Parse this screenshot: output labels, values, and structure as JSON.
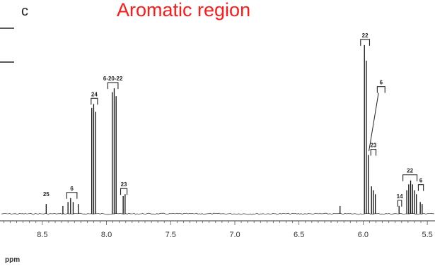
{
  "panel_letter": "c",
  "title": "Aromatic region",
  "chart_data": {
    "type": "line",
    "title": "Aromatic region",
    "xlabel": "ppm",
    "ylabel": "",
    "xlim": [
      8.83,
      5.44
    ],
    "x_reversed": true,
    "grid": false,
    "xticks": [
      "8.5",
      "8.0",
      "7.5",
      "7.0",
      "6.5",
      "6.0",
      "5.5"
    ],
    "tick_values": [
      8.5,
      8.0,
      7.5,
      7.0,
      6.5,
      6.0,
      5.5
    ],
    "peaks": [
      {
        "ppm": 8.47,
        "height": 0.05
      },
      {
        "ppm": 8.34,
        "height": 0.04
      },
      {
        "ppm": 8.3,
        "height": 0.06
      },
      {
        "ppm": 8.28,
        "height": 0.08
      },
      {
        "ppm": 8.26,
        "height": 0.06
      },
      {
        "ppm": 8.22,
        "height": 0.05
      },
      {
        "ppm": 8.115,
        "height": 0.54
      },
      {
        "ppm": 8.1,
        "height": 0.56
      },
      {
        "ppm": 8.085,
        "height": 0.52
      },
      {
        "ppm": 7.955,
        "height": 0.62
      },
      {
        "ppm": 7.94,
        "height": 0.64
      },
      {
        "ppm": 7.925,
        "height": 0.6
      },
      {
        "ppm": 7.87,
        "height": 0.09
      },
      {
        "ppm": 7.855,
        "height": 0.1
      },
      {
        "ppm": 6.18,
        "height": 0.04
      },
      {
        "ppm": 5.99,
        "height": 0.86
      },
      {
        "ppm": 5.975,
        "height": 0.78
      },
      {
        "ppm": 5.96,
        "height": 0.3
      },
      {
        "ppm": 5.935,
        "height": 0.14
      },
      {
        "ppm": 5.92,
        "height": 0.12
      },
      {
        "ppm": 5.905,
        "height": 0.1
      },
      {
        "ppm": 5.72,
        "height": 0.04
      },
      {
        "ppm": 5.66,
        "height": 0.12
      },
      {
        "ppm": 5.645,
        "height": 0.15
      },
      {
        "ppm": 5.63,
        "height": 0.17
      },
      {
        "ppm": 5.615,
        "height": 0.15
      },
      {
        "ppm": 5.6,
        "height": 0.12
      },
      {
        "ppm": 5.585,
        "height": 0.1
      },
      {
        "ppm": 5.555,
        "height": 0.06
      },
      {
        "ppm": 5.54,
        "height": 0.05
      }
    ],
    "annotations": [
      {
        "label": "25",
        "from": 8.47,
        "to": 8.47,
        "bracket": false
      },
      {
        "label": "6",
        "from": 8.31,
        "to": 8.23,
        "bracket": true
      },
      {
        "label": "24",
        "from": 8.12,
        "to": 8.07,
        "bracket": true
      },
      {
        "label": "6-20-22",
        "from": 7.99,
        "to": 7.91,
        "bracket": true
      },
      {
        "label": "23",
        "from": 7.89,
        "to": 7.84,
        "bracket": true
      },
      {
        "label": "22",
        "from": 6.02,
        "to": 5.95,
        "bracket": true
      },
      {
        "label": "6",
        "from": 5.89,
        "to": 5.83,
        "bracket": true
      },
      {
        "label": "23",
        "from": 5.94,
        "to": 5.9,
        "bracket": true
      },
      {
        "label": "14",
        "from": 5.73,
        "to": 5.7,
        "bracket": true
      },
      {
        "label": "22",
        "from": 5.69,
        "to": 5.58,
        "bracket": true
      },
      {
        "label": "6",
        "from": 5.57,
        "to": 5.53,
        "bracket": true
      }
    ]
  }
}
